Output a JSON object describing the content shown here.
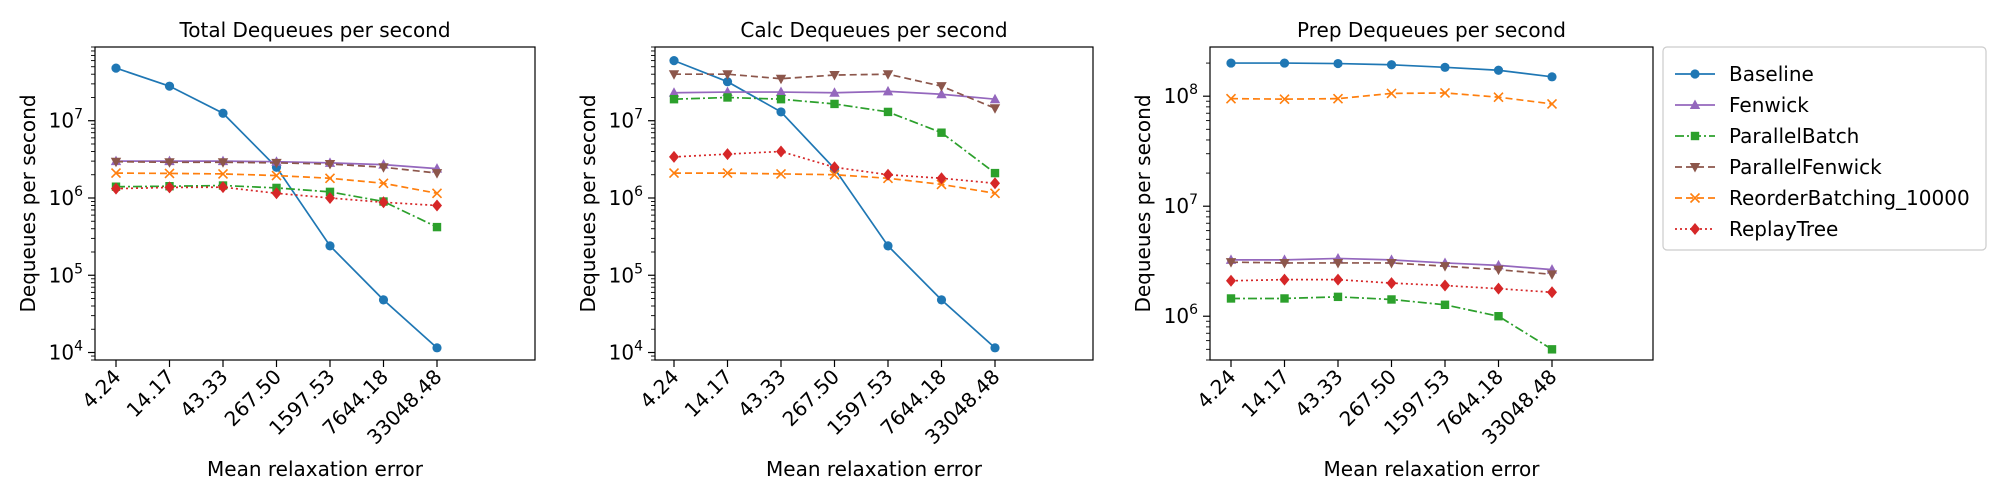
{
  "legend": {
    "location": "right, outside plots",
    "entries": [
      "Baseline",
      "Fenwick",
      "ParallelBatch",
      "ParallelFenwick",
      "ReorderBatching_10000",
      "ReplayTree"
    ]
  },
  "series_styles": [
    {
      "name": "Baseline",
      "color": "#1f77b4",
      "marker": "circle",
      "dash": "solid"
    },
    {
      "name": "Fenwick",
      "color": "#9467bd",
      "marker": "triangle-up",
      "dash": "solid"
    },
    {
      "name": "ParallelBatch",
      "color": "#2ca02c",
      "marker": "square",
      "dash": "dashdot"
    },
    {
      "name": "ParallelFenwick",
      "color": "#8c564b",
      "marker": "triangle-down",
      "dash": "dashed"
    },
    {
      "name": "ReorderBatching_10000",
      "color": "#ff7f0e",
      "marker": "x",
      "dash": "dashed"
    },
    {
      "name": "ReplayTree",
      "color": "#d62728",
      "marker": "diamond",
      "dash": "dotted"
    }
  ],
  "chart_data": [
    {
      "type": "line",
      "title": "Total Dequeues per second",
      "xlabel": "Mean relaxation error",
      "ylabel": "Dequeues per second",
      "x_scale": "categorical",
      "y_scale": "log",
      "categories": [
        "4.24",
        "14.17",
        "43.33",
        "267.50",
        "1597.53",
        "7644.18",
        "33048.48"
      ],
      "ylim": [
        8000,
        90000000
      ],
      "y_ticks": [
        10000,
        100000,
        1000000,
        10000000
      ],
      "y_tick_labels": [
        {
          "base": "10",
          "exp": "4"
        },
        {
          "base": "10",
          "exp": "5"
        },
        {
          "base": "10",
          "exp": "6"
        },
        {
          "base": "10",
          "exp": "7"
        }
      ],
      "grid": false,
      "series": [
        {
          "name": "Baseline",
          "values": [
            48000000,
            28000000,
            12500000,
            2500000,
            240000,
            48000,
            11500
          ]
        },
        {
          "name": "Fenwick",
          "values": [
            3000000,
            3000000,
            3000000,
            2950000,
            2850000,
            2700000,
            2400000
          ]
        },
        {
          "name": "ParallelBatch",
          "values": [
            1400000,
            1420000,
            1450000,
            1350000,
            1200000,
            900000,
            420000
          ]
        },
        {
          "name": "ParallelFenwick",
          "values": [
            2950000,
            2900000,
            2900000,
            2850000,
            2750000,
            2500000,
            2100000
          ]
        },
        {
          "name": "ReorderBatching_10000",
          "values": [
            2100000,
            2080000,
            2050000,
            1950000,
            1800000,
            1550000,
            1150000
          ]
        },
        {
          "name": "ReplayTree",
          "values": [
            1320000,
            1370000,
            1380000,
            1150000,
            1000000,
            880000,
            800000
          ]
        }
      ]
    },
    {
      "type": "line",
      "title": "Calc Dequeues per second",
      "xlabel": "Mean relaxation error",
      "ylabel": "Dequeues per second",
      "x_scale": "categorical",
      "y_scale": "log",
      "categories": [
        "4.24",
        "14.17",
        "43.33",
        "267.50",
        "1597.53",
        "7644.18",
        "33048.48"
      ],
      "ylim": [
        8000,
        90000000
      ],
      "y_ticks": [
        10000,
        100000,
        1000000,
        10000000
      ],
      "y_tick_labels": [
        {
          "base": "10",
          "exp": "4"
        },
        {
          "base": "10",
          "exp": "5"
        },
        {
          "base": "10",
          "exp": "6"
        },
        {
          "base": "10",
          "exp": "7"
        }
      ],
      "grid": false,
      "series": [
        {
          "name": "Baseline",
          "values": [
            60000000,
            32000000,
            13000000,
            2400000,
            240000,
            48000,
            11500
          ]
        },
        {
          "name": "Fenwick",
          "values": [
            23000000,
            23500000,
            23500000,
            23000000,
            24000000,
            22000000,
            19000000
          ]
        },
        {
          "name": "ParallelBatch",
          "values": [
            19000000,
            20000000,
            19000000,
            16500000,
            13000000,
            7000000,
            2100000
          ]
        },
        {
          "name": "ParallelFenwick",
          "values": [
            40000000,
            40000000,
            35000000,
            39000000,
            40000000,
            28000000,
            14500000
          ]
        },
        {
          "name": "ReorderBatching_10000",
          "values": [
            2100000,
            2100000,
            2050000,
            2000000,
            1800000,
            1500000,
            1150000
          ]
        },
        {
          "name": "ReplayTree",
          "values": [
            3400000,
            3700000,
            4000000,
            2500000,
            2000000,
            1800000,
            1550000
          ]
        }
      ]
    },
    {
      "type": "line",
      "title": "Prep Dequeues per second",
      "xlabel": "Mean relaxation error",
      "ylabel": "Dequeues per second",
      "x_scale": "categorical",
      "y_scale": "log",
      "categories": [
        "4.24",
        "14.17",
        "43.33",
        "267.50",
        "1597.53",
        "7644.18",
        "33048.48"
      ],
      "ylim": [
        400000,
        280000000
      ],
      "y_ticks": [
        1000000,
        10000000,
        100000000
      ],
      "y_tick_labels": [
        {
          "base": "10",
          "exp": "6"
        },
        {
          "base": "10",
          "exp": "7"
        },
        {
          "base": "10",
          "exp": "8"
        }
      ],
      "grid": false,
      "series": [
        {
          "name": "Baseline",
          "values": [
            200000000,
            200000000,
            198000000,
            193000000,
            183000000,
            172000000,
            150000000
          ]
        },
        {
          "name": "Fenwick",
          "values": [
            3250000,
            3250000,
            3350000,
            3250000,
            3050000,
            2900000,
            2650000
          ]
        },
        {
          "name": "ParallelBatch",
          "values": [
            1450000,
            1450000,
            1500000,
            1420000,
            1270000,
            1000000,
            500000
          ]
        },
        {
          "name": "ParallelFenwick",
          "values": [
            3100000,
            3050000,
            3050000,
            3050000,
            2850000,
            2650000,
            2400000
          ]
        },
        {
          "name": "ReorderBatching_10000",
          "values": [
            95000000,
            94000000,
            95000000,
            106000000,
            107000000,
            98000000,
            85000000
          ]
        },
        {
          "name": "ReplayTree",
          "values": [
            2100000,
            2150000,
            2150000,
            2000000,
            1900000,
            1780000,
            1650000
          ]
        }
      ]
    }
  ]
}
